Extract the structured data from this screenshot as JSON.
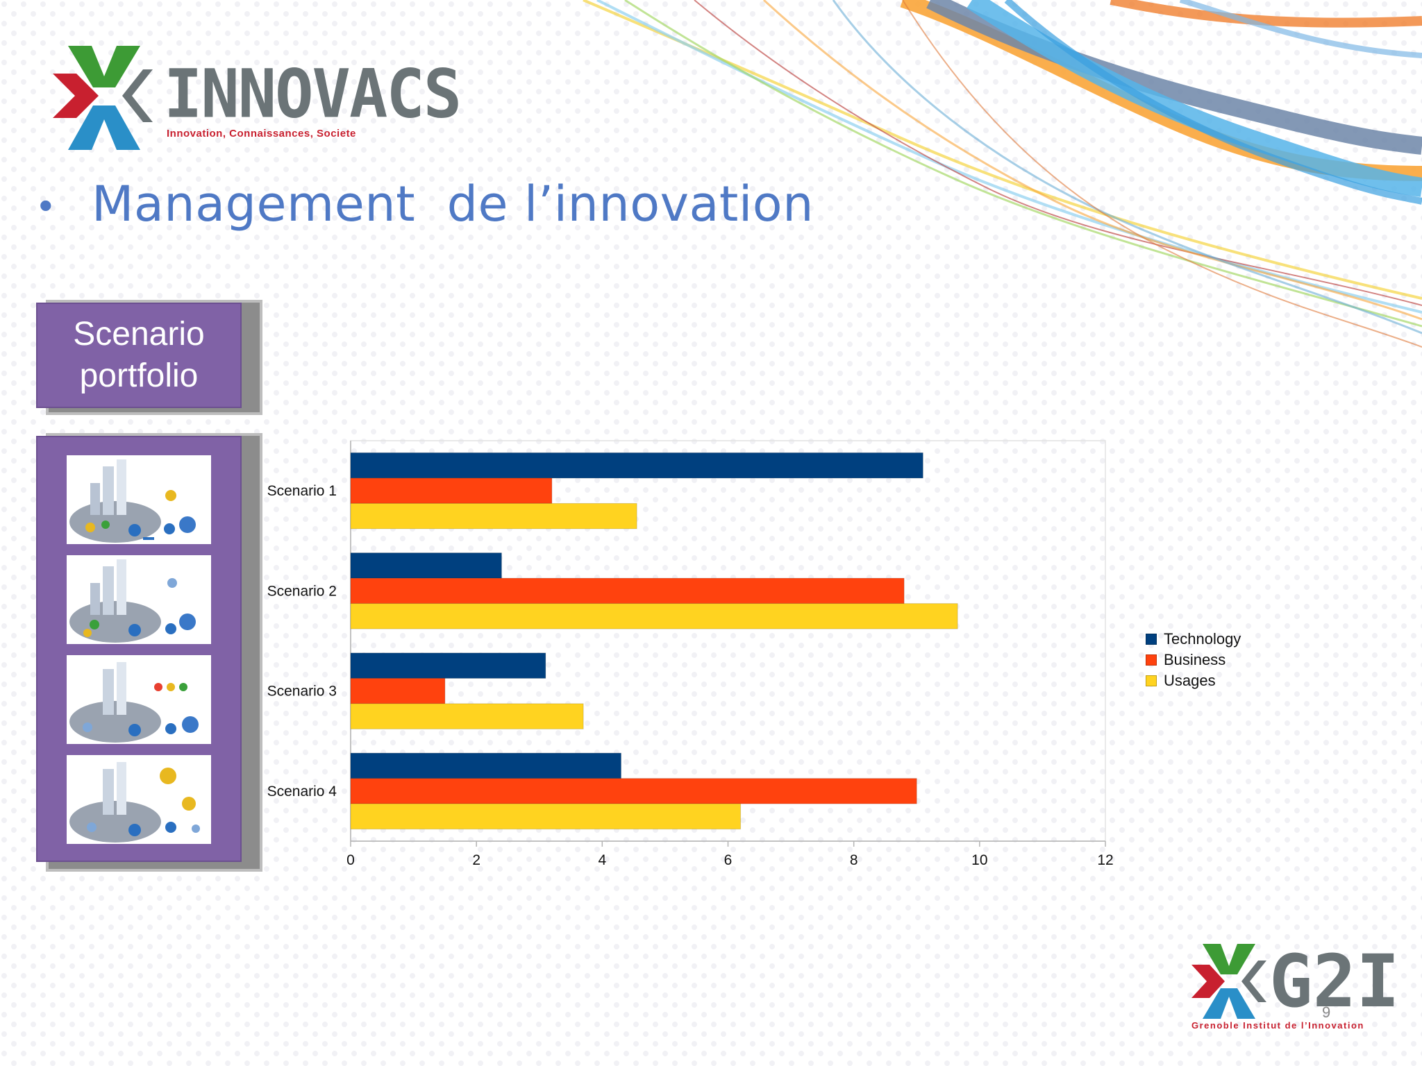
{
  "logo": {
    "name": "INNOVACS",
    "tagline": "Innovation, Connaissances, Societe",
    "colors": {
      "red": "#c8202f",
      "green": "#3d9b35",
      "blue": "#2a8fc8",
      "gray": "#6b7477"
    }
  },
  "title": "Management  de l’innovation",
  "scenario_box": {
    "line1": "Scenario",
    "line2": "portfolio",
    "color": "#8062a6"
  },
  "thumbnails": [
    {
      "icon": "scenario-1-thumbnail"
    },
    {
      "icon": "scenario-2-thumbnail"
    },
    {
      "icon": "scenario-3-thumbnail"
    },
    {
      "icon": "scenario-4-thumbnail"
    }
  ],
  "chart_data": {
    "type": "bar",
    "orientation": "horizontal",
    "categories": [
      "Scenario 1",
      "Scenario 2",
      "Scenario 3",
      "Scenario 4"
    ],
    "series": [
      {
        "name": "Technology",
        "values": [
          9.1,
          2.4,
          3.1,
          4.3
        ],
        "color": "#00407f"
      },
      {
        "name": "Business",
        "values": [
          3.2,
          8.8,
          1.5,
          9.0
        ],
        "color": "#ff420e"
      },
      {
        "name": "Usages",
        "values": [
          4.55,
          9.65,
          3.7,
          6.2
        ],
        "color": "#ffd320"
      }
    ],
    "xlim": [
      0,
      12
    ],
    "xticks": [
      0,
      2,
      4,
      6,
      8,
      10,
      12
    ],
    "grid": false,
    "legend_position": "right"
  },
  "footer_logo": {
    "name": "G2I",
    "tagline": "Grenoble Institut de l’Innovation"
  },
  "page_number": "9"
}
